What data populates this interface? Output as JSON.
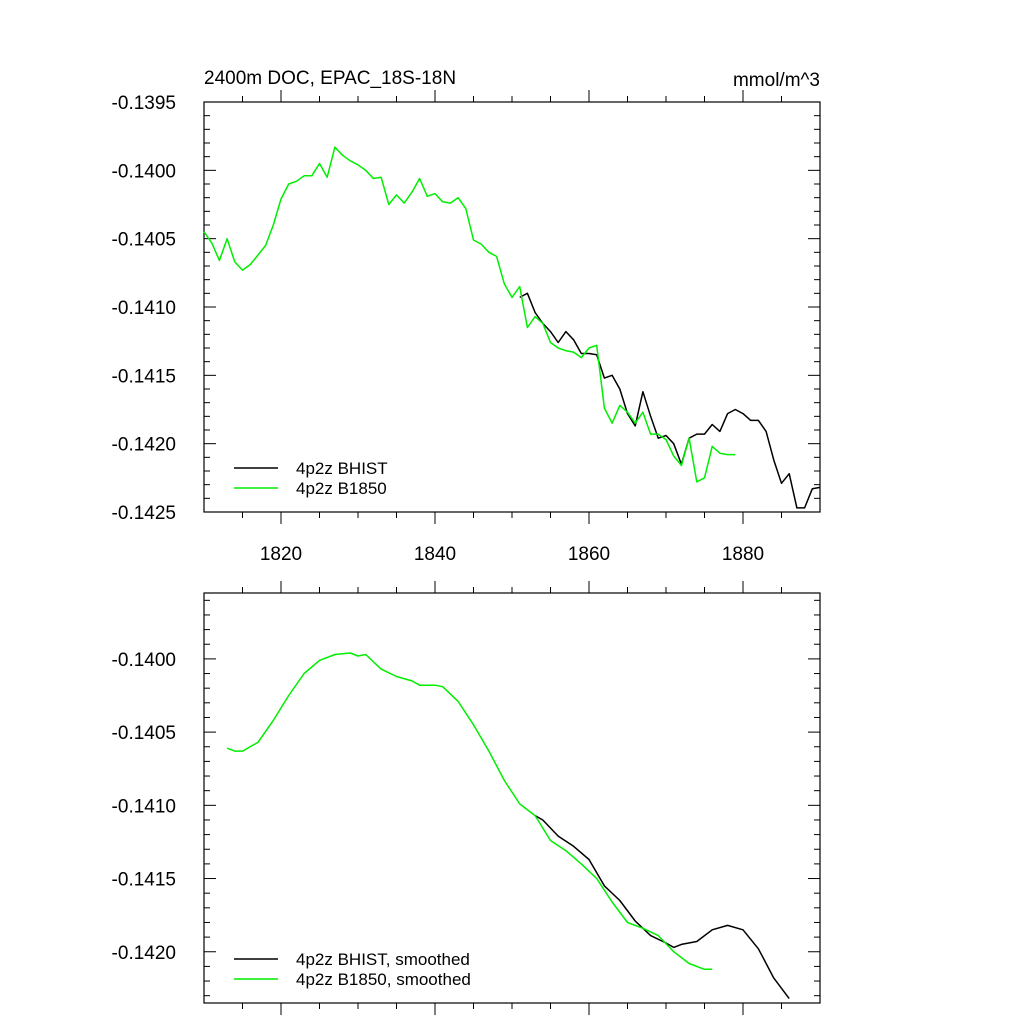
{
  "chart_data": [
    {
      "type": "line",
      "title": "2400m DOC, EPAC_18S-18N",
      "units": "mmol/m^3",
      "xlabel": "",
      "ylabel": "",
      "xlim": [
        1810,
        1890
      ],
      "ylim": [
        -0.1425,
        -0.1395
      ],
      "x_tick_labels": [
        "1820",
        "1840",
        "1860",
        "1880"
      ],
      "y_tick_labels": [
        "-0.1395",
        "-0.1400",
        "-0.1405",
        "-0.1410",
        "-0.1415",
        "-0.1420",
        "-0.1425"
      ],
      "grid": false,
      "legend": "bottom-left",
      "series": [
        {
          "name": "4p2z BHIST",
          "color": "#000000",
          "x": [
            1851,
            1852,
            1853,
            1854,
            1855,
            1856,
            1857,
            1858,
            1859,
            1860,
            1861,
            1862,
            1863,
            1864,
            1865,
            1866,
            1867,
            1868,
            1869,
            1870,
            1871,
            1872,
            1873,
            1874,
            1875,
            1876,
            1877,
            1878,
            1879,
            1880,
            1881,
            1882,
            1883,
            1884,
            1885,
            1886,
            1887,
            1888,
            1889,
            1890
          ],
          "values": [
            -0.14093,
            -0.1409,
            -0.14104,
            -0.14112,
            -0.14118,
            -0.14126,
            -0.14118,
            -0.14124,
            -0.14134,
            -0.14134,
            -0.14135,
            -0.14152,
            -0.1415,
            -0.1416,
            -0.14178,
            -0.14187,
            -0.14162,
            -0.1418,
            -0.14196,
            -0.14194,
            -0.142,
            -0.14215,
            -0.14196,
            -0.14193,
            -0.14193,
            -0.14186,
            -0.14191,
            -0.14178,
            -0.14175,
            -0.14178,
            -0.14183,
            -0.14183,
            -0.14191,
            -0.14212,
            -0.14229,
            -0.14222,
            -0.14247,
            -0.14247,
            -0.14233,
            -0.14232
          ]
        },
        {
          "name": "4p2z B1850",
          "color": "#00ee00",
          "x": [
            1810,
            1811,
            1812,
            1813,
            1814,
            1815,
            1816,
            1817,
            1818,
            1819,
            1820,
            1821,
            1822,
            1823,
            1824,
            1825,
            1826,
            1827,
            1828,
            1829,
            1830,
            1831,
            1832,
            1833,
            1834,
            1835,
            1836,
            1837,
            1838,
            1839,
            1840,
            1841,
            1842,
            1843,
            1844,
            1845,
            1846,
            1847,
            1848,
            1849,
            1850,
            1851,
            1852,
            1853,
            1854,
            1855,
            1856,
            1857,
            1858,
            1859,
            1860,
            1861,
            1862,
            1863,
            1864,
            1865,
            1866,
            1867,
            1868,
            1869,
            1870,
            1871,
            1872,
            1873,
            1874,
            1875,
            1876,
            1877,
            1878,
            1879
          ],
          "values": [
            -0.14045,
            -0.14053,
            -0.14066,
            -0.1405,
            -0.14067,
            -0.14073,
            -0.14069,
            -0.14062,
            -0.14055,
            -0.1404,
            -0.14021,
            -0.1401,
            -0.14008,
            -0.14004,
            -0.14004,
            -0.13995,
            -0.14005,
            -0.13983,
            -0.13989,
            -0.13993,
            -0.13996,
            -0.14,
            -0.14006,
            -0.14005,
            -0.14025,
            -0.14018,
            -0.14024,
            -0.14016,
            -0.14006,
            -0.14019,
            -0.14017,
            -0.14023,
            -0.14024,
            -0.1402,
            -0.14028,
            -0.14051,
            -0.14054,
            -0.1406,
            -0.14063,
            -0.14083,
            -0.14093,
            -0.14085,
            -0.14115,
            -0.14107,
            -0.14112,
            -0.14126,
            -0.1413,
            -0.14132,
            -0.14133,
            -0.14137,
            -0.1413,
            -0.14128,
            -0.14174,
            -0.14185,
            -0.14172,
            -0.14177,
            -0.14185,
            -0.14177,
            -0.14193,
            -0.14193,
            -0.14197,
            -0.14209,
            -0.14216,
            -0.14196,
            -0.14228,
            -0.14225,
            -0.14202,
            -0.14207,
            -0.14208,
            -0.14208
          ]
        }
      ]
    },
    {
      "type": "line",
      "title": "",
      "xlabel": "",
      "ylabel": "",
      "xlim": [
        1810,
        1890
      ],
      "ylim": [
        -0.14235,
        -0.13955
      ],
      "y_tick_labels": [
        "-0.1400",
        "-0.1405",
        "-0.1410",
        "-0.1415",
        "-0.1420"
      ],
      "grid": false,
      "legend": "bottom-left",
      "series": [
        {
          "name": "4p2z BHIST, smoothed",
          "color": "#000000",
          "x": [
            1853,
            1854,
            1856,
            1858,
            1860,
            1862,
            1864,
            1866,
            1868,
            1870,
            1871,
            1872,
            1874,
            1876,
            1878,
            1880,
            1882,
            1884,
            1886
          ],
          "values": [
            -0.14107,
            -0.1411,
            -0.14121,
            -0.14128,
            -0.14137,
            -0.14155,
            -0.14165,
            -0.14179,
            -0.14189,
            -0.14194,
            -0.14197,
            -0.14195,
            -0.14193,
            -0.14185,
            -0.14182,
            -0.14185,
            -0.14198,
            -0.14218,
            -0.14232
          ]
        },
        {
          "name": "4p2z B1850, smoothed",
          "color": "#00ee00",
          "x": [
            1813,
            1814,
            1815,
            1817,
            1819,
            1821,
            1823,
            1825,
            1827,
            1829,
            1830,
            1831,
            1833,
            1835,
            1837,
            1838,
            1840,
            1841,
            1843,
            1845,
            1847,
            1849,
            1851,
            1853,
            1855,
            1857,
            1859,
            1861,
            1863,
            1865,
            1867,
            1869,
            1871,
            1873,
            1875,
            1876
          ],
          "values": [
            -0.14061,
            -0.14063,
            -0.14063,
            -0.14057,
            -0.14042,
            -0.14025,
            -0.1401,
            -0.14001,
            -0.13997,
            -0.13996,
            -0.13998,
            -0.13997,
            -0.14007,
            -0.14012,
            -0.14015,
            -0.14018,
            -0.14018,
            -0.14019,
            -0.14029,
            -0.14045,
            -0.14063,
            -0.14083,
            -0.14099,
            -0.14107,
            -0.14124,
            -0.14131,
            -0.1414,
            -0.1415,
            -0.14166,
            -0.1418,
            -0.14184,
            -0.14189,
            -0.142,
            -0.14208,
            -0.14212,
            -0.14212
          ]
        }
      ]
    }
  ]
}
